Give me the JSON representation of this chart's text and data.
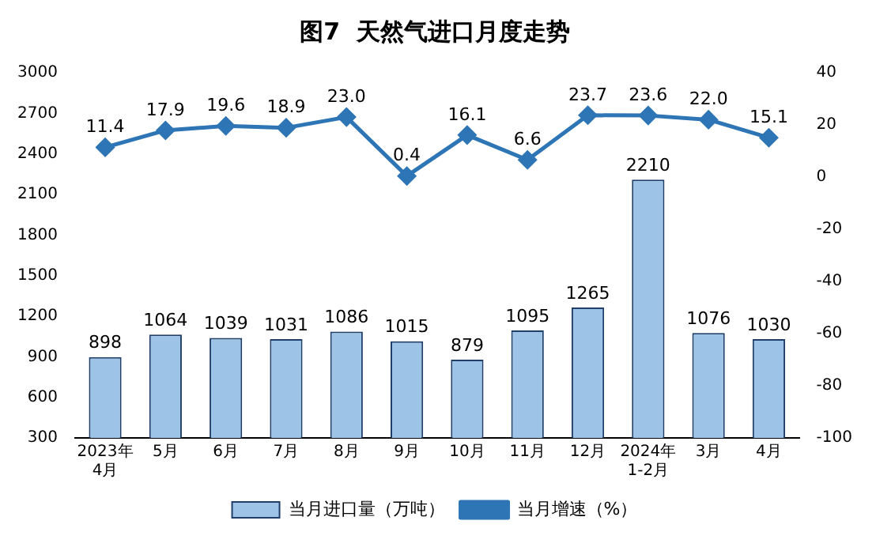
{
  "chart_data": {
    "type": "bar",
    "title": "图7  天然气进口月度走势",
    "categories": [
      "2023年\n4月",
      "5月",
      "6月",
      "7月",
      "8月",
      "9月",
      "10月",
      "11月",
      "12月",
      "2024年\n1-2月",
      "3月",
      "4月"
    ],
    "series": [
      {
        "name": "当月进口量（万吨）",
        "color": "#9dc3e6",
        "values": [
          898,
          1064,
          1039,
          1031,
          1086,
          1015,
          879,
          1095,
          1265,
          2210,
          1076,
          1030
        ]
      },
      {
        "name": "当月增速（%）",
        "type": "line",
        "axis": "y2",
        "color": "#2e75b6",
        "marker": "diamond",
        "values": [
          11.4,
          17.9,
          19.6,
          18.9,
          23.0,
          0.4,
          16.1,
          6.6,
          23.7,
          23.6,
          22.0,
          15.1
        ],
        "value_labels": [
          "11.4",
          "17.9",
          "19.6",
          "18.9",
          "23.0",
          "0.4",
          "16.1",
          "6.6",
          "23.7",
          "23.6",
          "22.0",
          "15.1"
        ]
      }
    ],
    "ylim": [
      300,
      3000
    ],
    "yticks": [
      300,
      600,
      900,
      1200,
      1500,
      1800,
      2100,
      2400,
      2700,
      3000
    ],
    "y2lim": [
      -100,
      40
    ],
    "y2ticks": [
      -100,
      -80,
      -60,
      -40,
      -20,
      0,
      20,
      40
    ],
    "data_labels": true,
    "legend": "bottom"
  }
}
